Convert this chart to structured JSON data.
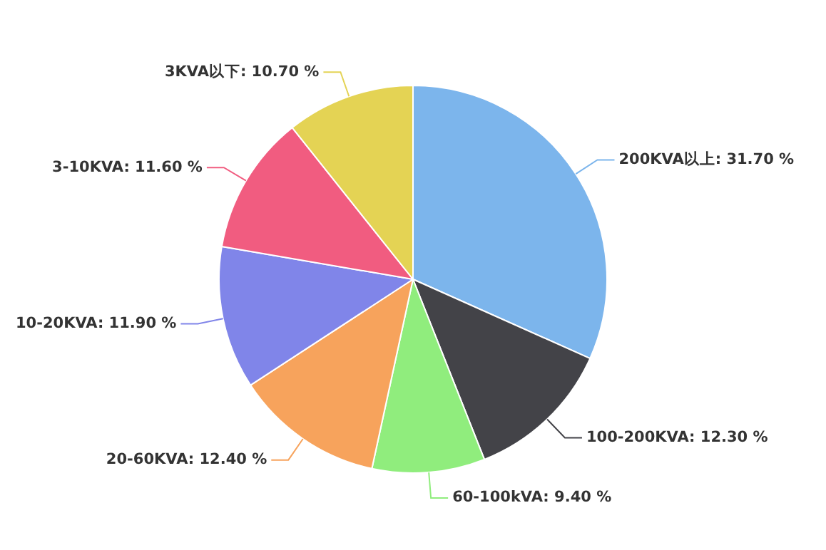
{
  "chart_data": {
    "type": "pie",
    "categories": [
      "200KVA以上",
      "100-200KVA",
      "60-100kVA",
      "20-60KVA",
      "10-20KVA",
      "3-10KVA",
      "3KVA以下"
    ],
    "values": [
      31.7,
      12.3,
      9.4,
      12.4,
      11.9,
      11.6,
      10.7
    ],
    "value_labels": [
      "31.70 %",
      "12.30 %",
      "9.40 %",
      "12.40 %",
      "11.90 %",
      "11.60 %",
      "10.70 %"
    ],
    "colors": [
      "#7cb5ec",
      "#434348",
      "#90ed7d",
      "#f7a35c",
      "#8085e9",
      "#f15c80",
      "#e4d354"
    ],
    "legend": false
  }
}
